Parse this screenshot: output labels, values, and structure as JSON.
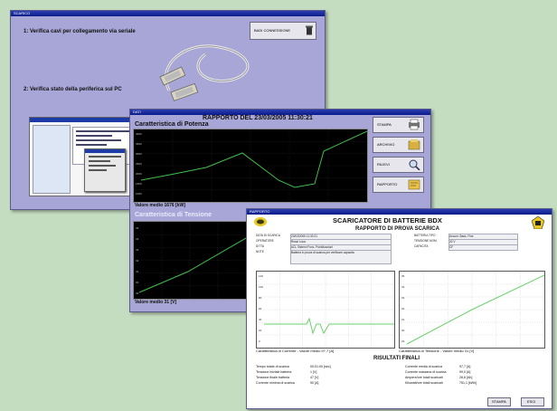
{
  "window1": {
    "title": "SCARICO",
    "step1": "1: Verifica cavi per collegamento via seriale",
    "step2": "2: Verifica stato della periferica sul PC",
    "button_label": "BADI CONNESSIONE"
  },
  "window2": {
    "title": "DATI",
    "report_title": "RAPPORTO DEL 23/03/2005 11:30:21",
    "power_chart": {
      "title": "Caratteristica di Potenza",
      "footer": "Valore medio 1676 [kW]",
      "y_ticks": [
        "4000",
        "3500",
        "3000",
        "2500",
        "2000",
        "1500",
        "1000"
      ]
    },
    "voltage_chart": {
      "title": "Caratteristica di Tensione",
      "footer": "Valore medio 31 [V]",
      "y_ticks": [
        "35",
        "34",
        "33",
        "32",
        "31",
        "30",
        "29"
      ]
    },
    "buttons": [
      {
        "label": "STAMPA",
        "icon": "printer-icon"
      },
      {
        "label": "ARCHIVIO",
        "icon": "archive-icon"
      },
      {
        "label": "RILIEVI",
        "icon": "magnifier-icon"
      },
      {
        "label": "RAPPORTO",
        "icon": "report-icon"
      }
    ]
  },
  "window3": {
    "title": "RAPPORTO",
    "header_title": "SCARICATORE DI BATTERIE BDX",
    "subtitle": "RAPPORTO DI PROVA SCARICA",
    "info_left": [
      {
        "label": "DATA DI SCARICA",
        "value": "23/03/2005 11:30:21"
      },
      {
        "label": "OPERATORE",
        "value": "Rossi Luca"
      },
      {
        "label": "DITTA",
        "value": "ACL Sistemi Fonc. Pubblicazioni"
      },
      {
        "label": "NOTE",
        "value": "Batteria in prova di scarica per verificare capacita"
      }
    ],
    "info_right": [
      {
        "label": "BATTERIA TIPO",
        "value": "Accum. Bass. Fine"
      },
      {
        "label": "TENSIONE NOM.",
        "value": "32 V"
      },
      {
        "label": "CAPACITA",
        "value": "CF"
      }
    ],
    "current_chart": {
      "caption": "Caratteristica di Corrente - Valore medio 97,7 [A]",
      "y_ticks": [
        "120",
        "100",
        "80",
        "60",
        "40",
        "20",
        "0"
      ]
    },
    "voltage_chart": {
      "caption": "Caratteristica di Tensione - Valore medio 31 [V]",
      "y_ticks": [
        "35",
        "34",
        "33",
        "32",
        "31",
        "30",
        "29"
      ]
    },
    "results_title": "RISULTATI FINALI",
    "results_left": [
      {
        "label": "Tempo totale di scarica",
        "value": "00:01:00 [sec]"
      },
      {
        "label": "Tensione iniziale batteria",
        "value": "1 [V]"
      },
      {
        "label": "Tensione finale batteria",
        "value": "47 [V]"
      },
      {
        "label": "Corrente minima di scarica",
        "value": "90 [A]"
      }
    ],
    "results_right": [
      {
        "label": "Corrente media di scarica",
        "value": "97,7 [A]"
      },
      {
        "label": "Corrente massima di scarica",
        "value": "99,0 [A]"
      },
      {
        "label": "Ampere/ore totali scaricati",
        "value": "28,6 [Ah]"
      },
      {
        "label": "Kilowatt/ore totali scaricati",
        "value": "751,1 [kWh]"
      }
    ],
    "print_button": "STAMPA",
    "exit_button": "ESCI"
  }
}
